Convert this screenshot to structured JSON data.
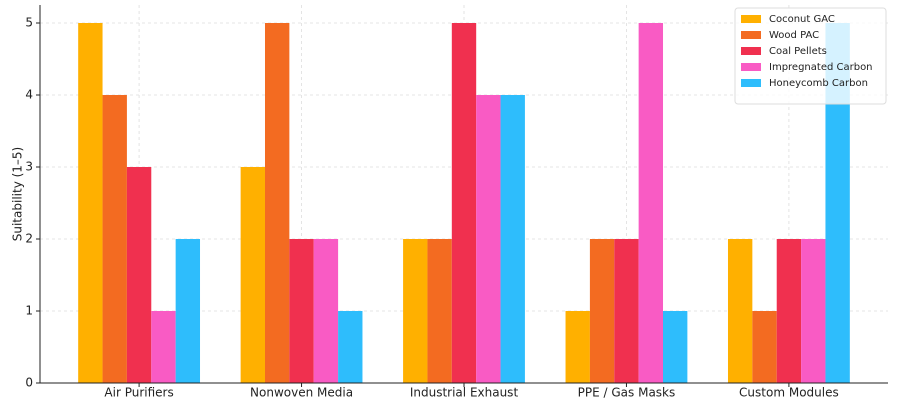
{
  "chart_data": {
    "type": "bar",
    "y_label": "Suitability (1–5)",
    "categories": [
      "Air Purifiers",
      "Nonwoven Media",
      "Industrial Exhaust",
      "PPE / Gas Masks",
      "Custom Modules"
    ],
    "series": [
      {
        "name": "Coconut GAC",
        "color": "#ffb000",
        "values": [
          5,
          3,
          2,
          1,
          2
        ]
      },
      {
        "name": "Wood PAC",
        "color": "#f36b21",
        "values": [
          4,
          5,
          2,
          2,
          1
        ]
      },
      {
        "name": "Coal Pellets",
        "color": "#f0304f",
        "values": [
          3,
          2,
          5,
          2,
          2
        ]
      },
      {
        "name": "Impregnated Carbon",
        "color": "#f95bc4",
        "values": [
          1,
          2,
          4,
          5,
          2
        ]
      },
      {
        "name": "Honeycomb Carbon",
        "color": "#2ebdfc",
        "values": [
          2,
          1,
          4,
          1,
          5
        ]
      }
    ],
    "ylim": [
      0,
      5.25
    ],
    "yticks": [
      0,
      1,
      2,
      3,
      4,
      5
    ],
    "grid": true,
    "legend": "upper-right"
  }
}
